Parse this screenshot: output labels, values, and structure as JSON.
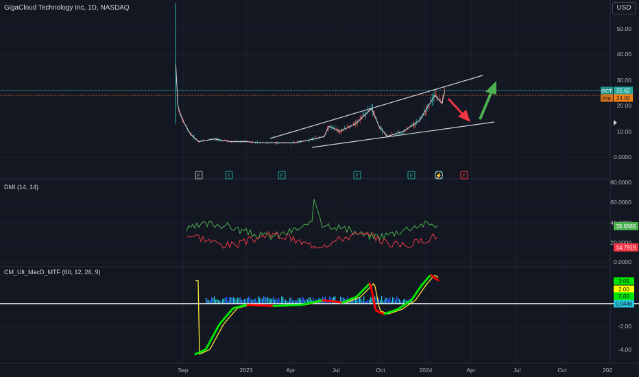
{
  "header": {
    "title": "GigaCloud Technology Inc, 1D, NASDAQ",
    "currency_button": "USD"
  },
  "colors": {
    "background": "#131722",
    "grid": "#1e222d",
    "axis_text": "#b2b5be",
    "price_line": "#26a69a",
    "prev_line": "#f57f17",
    "dmi_plus": "#4caf50",
    "dmi_minus": "#f23645",
    "macd_up": "#00e600",
    "macd_down": "#ff0000",
    "signal": "#ffeb3b",
    "hist_up": "#26c6da",
    "hist_down": "#2962ff",
    "trendline": "#d1d4dc",
    "arrow_down": "#f23645",
    "arrow_up": "#4caf50"
  },
  "x_axis": {
    "labels": [
      "Sep",
      "2023",
      "Apr",
      "Jul",
      "Oct",
      "2024",
      "Apr",
      "Jul",
      "Oct",
      "202"
    ]
  },
  "price_pane": {
    "y_ticks": [
      "50.00",
      "40.00",
      "30.00",
      "20.00",
      "10.00",
      "0.0000"
    ],
    "badges": [
      {
        "label": "GCT",
        "value": "25.62"
      },
      {
        "label": "Pre",
        "value": "24.00"
      }
    ],
    "event_markers": [
      "E",
      "E",
      "E",
      "E",
      "E",
      "E",
      "⚡",
      "E"
    ]
  },
  "dmi_pane": {
    "title": "DMI (14, 14)",
    "y_ticks": [
      "80.0000",
      "60.0000",
      "40.0000",
      "20.0000",
      "0.0000"
    ],
    "values": [
      "35.6565",
      "14.7919"
    ]
  },
  "macd_pane": {
    "title": "CM_Ult_MacD_MTF (60, 12, 26, 9)",
    "y_ticks": [
      "-2.00",
      "-4.00"
    ],
    "values": [
      "3.05",
      "2.00",
      "2.00",
      "0.0446"
    ]
  },
  "chart_data": {
    "type": "line",
    "series": [
      {
        "name": "GCT",
        "x": [
          "2022-08-18",
          "2022-08-22",
          "2022-08-25",
          "2022-09-01",
          "2022-09-15",
          "2022-10-01",
          "2022-11-01",
          "2022-12-01",
          "2023-01-01",
          "2023-02-01",
          "2023-03-01",
          "2023-04-01",
          "2023-05-01",
          "2023-06-01",
          "2023-06-10",
          "2023-07-01",
          "2023-08-01",
          "2023-09-01",
          "2023-09-15",
          "2023-10-01",
          "2023-11-01",
          "2023-12-01",
          "2024-01-01",
          "2024-01-15",
          "2024-01-20"
        ],
        "values": [
          36,
          20,
          18,
          14,
          9,
          6,
          7,
          6,
          6,
          5.5,
          5.5,
          5.5,
          6.5,
          8,
          12,
          10,
          13,
          19,
          12,
          8,
          10,
          14,
          24,
          21,
          25.62
        ]
      }
    ],
    "ylim": [
      -3,
      60
    ],
    "grid": true,
    "legend": "top-left"
  }
}
